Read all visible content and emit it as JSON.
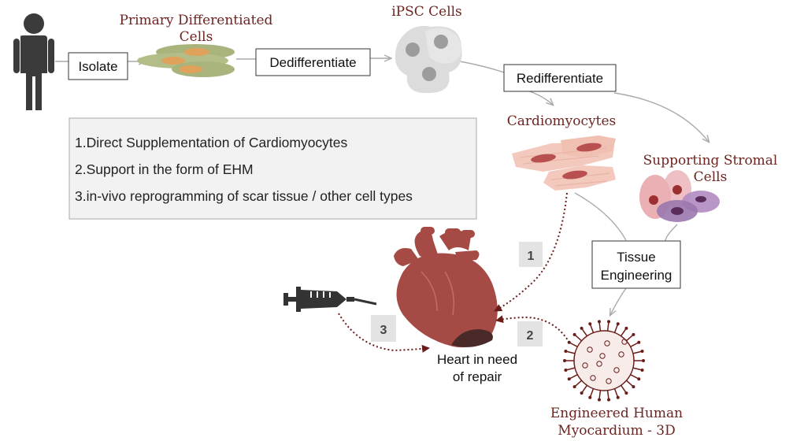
{
  "labels": {
    "isolate": "Isolate",
    "primary_cells_line1": "Primary Differentiated",
    "primary_cells_line2": "Cells",
    "dedifferentiate": "Dedifferentiate",
    "ipsc": "iPSC Cells",
    "redifferentiate": "Redifferentiate",
    "cardiomyocytes": "Cardiomyocytes",
    "stromal_line1": "Supporting Stromal",
    "stromal_line2": "Cells",
    "tissue_eng_line1": "Tissue",
    "tissue_eng_line2": "Engineering",
    "heart_line1": "Heart in need",
    "heart_line2": "of repair",
    "ehm_line1": "Engineered Human",
    "ehm_line2": "Myocardium - 3D"
  },
  "strategies": [
    "1.Direct Supplementation of Cardiomyocytes",
    "2.Support in the form of EHM",
    "3.in-vivo reprogramming of scar tissue / other cell types"
  ],
  "badges": [
    "1",
    "2",
    "3"
  ],
  "colors": {
    "label_red": "#6e2420",
    "arrow_dotted": "#6a1c18",
    "heart": "#a54a44",
    "scar": "#4a2a28",
    "person": "#3b3b3b",
    "primary_cell_green": "#a9b47c",
    "primary_cell_orange": "#e0a15a",
    "ipsc_cell": "#dcdcdc",
    "cardiomyocyte": "#f3c9bd",
    "stromal_pink": "#e7a2a6",
    "stromal_purple": "#9a78ae",
    "box_fill": "#f2f2f2",
    "badge_fill": "#e3e3e3"
  },
  "icons": [
    "person-icon",
    "syringe-icon",
    "heart-icon",
    "ehm-sphere-icon"
  ]
}
